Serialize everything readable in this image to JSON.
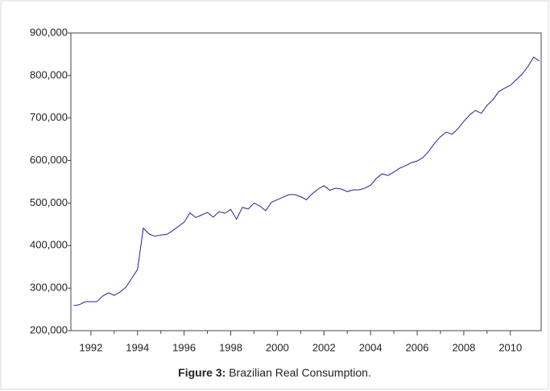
{
  "chart_data": {
    "type": "line",
    "caption_label": "Figure 3:",
    "title": "Brazilian Real Consumption.",
    "x": [
      1991.25,
      1991.5,
      1991.75,
      1992,
      1992.25,
      1992.5,
      1992.75,
      1993,
      1993.25,
      1993.5,
      1993.75,
      1994,
      1994.25,
      1994.5,
      1994.75,
      1995,
      1995.25,
      1995.5,
      1995.75,
      1996,
      1996.25,
      1996.5,
      1996.75,
      1997,
      1997.25,
      1997.5,
      1997.75,
      1998,
      1998.25,
      1998.5,
      1998.75,
      1999,
      1999.25,
      1999.5,
      1999.75,
      2000,
      2000.25,
      2000.5,
      2000.75,
      2001,
      2001.25,
      2001.5,
      2001.75,
      2002,
      2002.25,
      2002.5,
      2002.75,
      2003,
      2003.25,
      2003.5,
      2003.75,
      2004,
      2004.25,
      2004.5,
      2004.75,
      2005,
      2005.25,
      2005.5,
      2005.75,
      2006,
      2006.25,
      2006.5,
      2006.75,
      2007,
      2007.25,
      2007.5,
      2007.75,
      2008,
      2008.25,
      2008.5,
      2008.75,
      2009,
      2009.25,
      2009.5,
      2009.75,
      2010,
      2010.25,
      2010.5,
      2010.75,
      2011,
      2011.25
    ],
    "values": [
      259000,
      261000,
      268000,
      268000,
      268000,
      281000,
      289000,
      283000,
      291000,
      302000,
      323000,
      344000,
      441000,
      427000,
      422000,
      425000,
      426000,
      435000,
      445000,
      455000,
      477000,
      466000,
      472000,
      478000,
      467000,
      480000,
      476000,
      485000,
      462000,
      490000,
      486000,
      500000,
      493000,
      482000,
      502000,
      508000,
      514000,
      520000,
      520000,
      515000,
      508000,
      522000,
      533000,
      541000,
      530000,
      535000,
      533000,
      527000,
      531000,
      531000,
      535000,
      542000,
      558000,
      569000,
      565000,
      573000,
      582000,
      588000,
      595000,
      599000,
      607000,
      622000,
      641000,
      656000,
      667000,
      662000,
      675000,
      692000,
      707000,
      718000,
      711000,
      730000,
      743000,
      762000,
      770000,
      777000,
      790000,
      803000,
      821000,
      843000,
      834000
    ],
    "color": "#23238e",
    "xlim": [
      1991.14,
      2011.32
    ],
    "xticks": [
      1992,
      1994,
      1996,
      1998,
      2000,
      2002,
      2004,
      2006,
      2008,
      2010
    ],
    "ylim": [
      200000,
      900000
    ],
    "yticks": [
      {
        "value": 200000,
        "label": "200,000"
      },
      {
        "value": 300000,
        "label": "300,000"
      },
      {
        "value": 400000,
        "label": "400,000"
      },
      {
        "value": 500000,
        "label": "500,000"
      },
      {
        "value": 600000,
        "label": "600,000"
      },
      {
        "value": 700000,
        "label": "700,000"
      },
      {
        "value": 800000,
        "label": "800,000"
      },
      {
        "value": 900000,
        "label": "900,000"
      }
    ]
  }
}
